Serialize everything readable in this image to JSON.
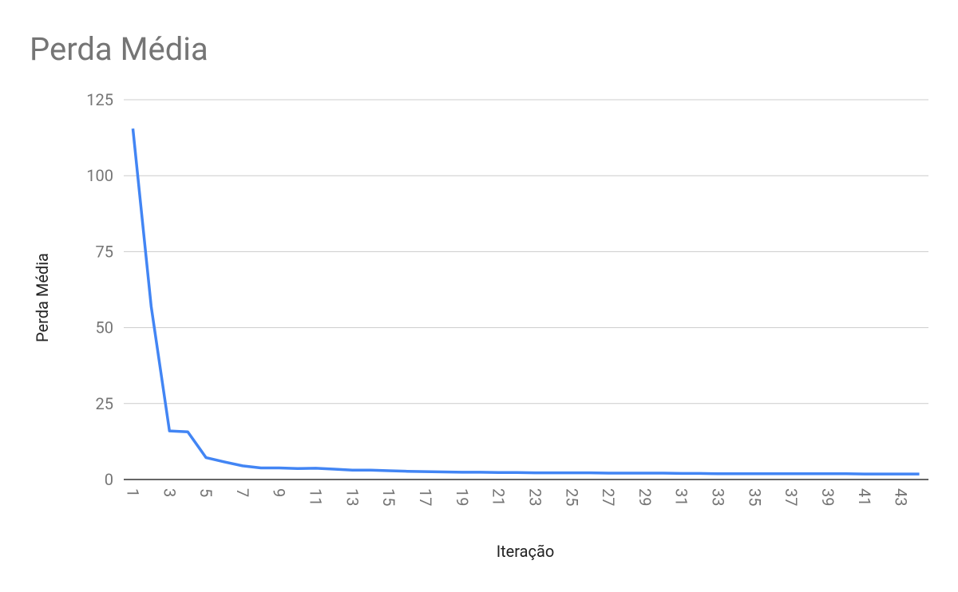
{
  "chart_data": {
    "type": "line",
    "title": "Perda Média",
    "y_label": "Perda Média",
    "x_label": "Iteração",
    "categories": [
      "1",
      null,
      "3",
      null,
      "5",
      null,
      "7",
      null,
      "9",
      null,
      "11",
      null,
      "13",
      null,
      "15",
      null,
      "17",
      null,
      "19",
      null,
      "21",
      null,
      "23",
      null,
      "25",
      null,
      "27",
      null,
      "29",
      null,
      "31",
      null,
      "33",
      null,
      "35",
      null,
      "37",
      null,
      "39",
      null,
      "41",
      null,
      "43",
      null
    ],
    "series": [
      {
        "name": "Perda Média",
        "color": "#4285f4",
        "values": [
          115.5,
          57,
          16,
          15.7,
          7.2,
          5.8,
          4.5,
          3.8,
          3.8,
          3.6,
          3.7,
          3.4,
          3.1,
          3.1,
          2.9,
          2.7,
          2.6,
          2.5,
          2.4,
          2.4,
          2.3,
          2.3,
          2.2,
          2.2,
          2.2,
          2.2,
          2.1,
          2.1,
          2.1,
          2.1,
          2.0,
          2.0,
          1.9,
          1.9,
          1.9,
          1.9,
          1.9,
          1.9,
          1.9,
          1.9,
          1.8,
          1.8,
          1.8,
          1.8
        ]
      }
    ],
    "ylim": [
      0,
      125
    ],
    "yticks": [
      0,
      25,
      50,
      75,
      100,
      125
    ],
    "grid": true
  }
}
